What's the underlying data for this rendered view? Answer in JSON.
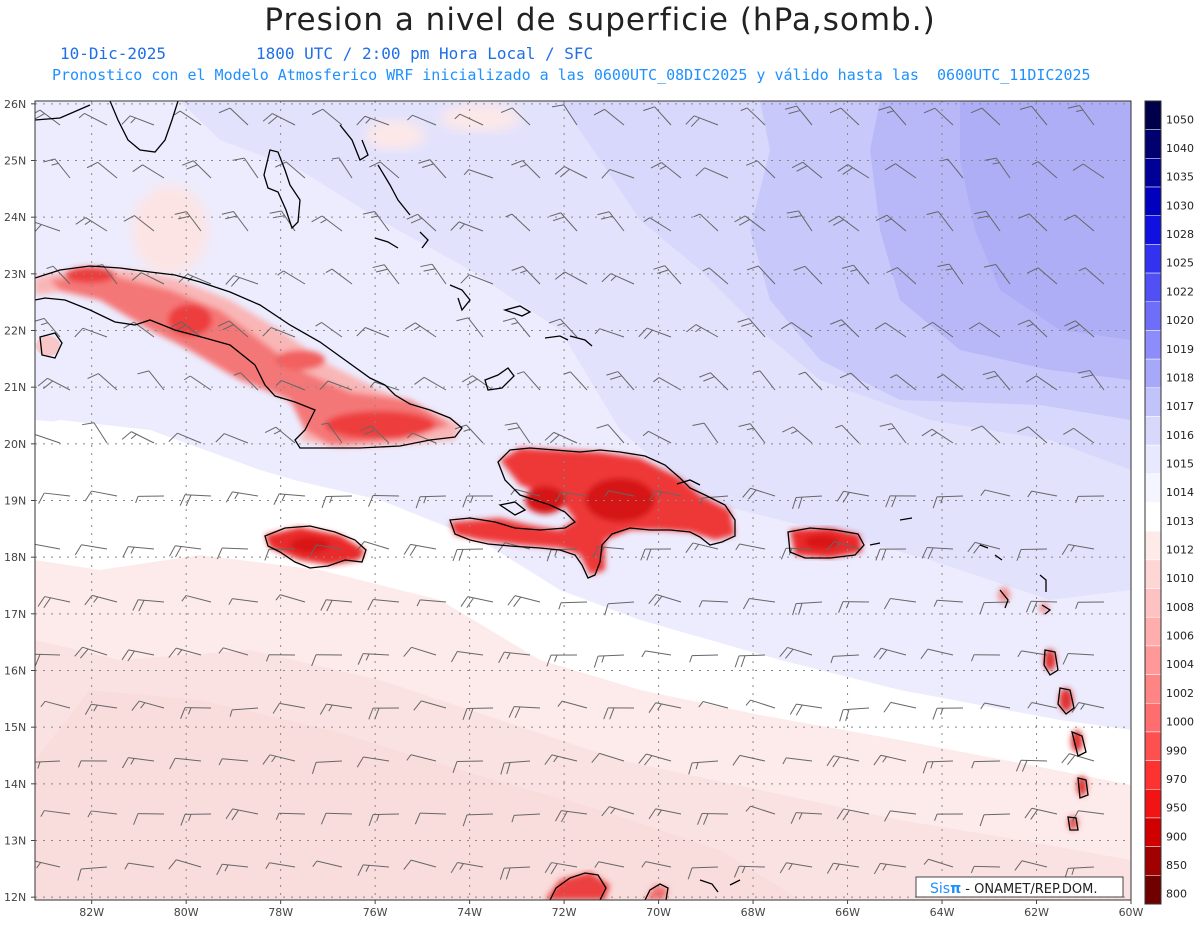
{
  "header": {
    "title": "Presion a nivel de superficie (hPa,somb.)",
    "date": "10-Dic-2025",
    "time": "1800 UTC / 2:00 pm Hora Local / SFC",
    "model_note": "Pronostico con el Modelo Atmosferico WRF inicializado a las 0600UTC_08DIC2025 y válido hasta las  0600UTC_11DIC2025"
  },
  "axes": {
    "lat_labels": [
      "26N",
      "25N",
      "24N",
      "23N",
      "22N",
      "21N",
      "20N",
      "19N",
      "18N",
      "17N",
      "16N",
      "15N",
      "14N",
      "13N",
      "12N"
    ],
    "lon_labels": [
      "82W",
      "80W",
      "78W",
      "76W",
      "74W",
      "72W",
      "70W",
      "68W",
      "66W",
      "64W",
      "62W",
      "60W"
    ]
  },
  "colorbar": {
    "labels": [
      "1050",
      "1040",
      "1035",
      "1030",
      "1028",
      "1025",
      "1022",
      "1020",
      "1019",
      "1018",
      "1017",
      "1016",
      "1015",
      "1014",
      "1013",
      "1012",
      "1010",
      "1008",
      "1006",
      "1004",
      "1002",
      "1000",
      "990",
      "970",
      "950",
      "900",
      "850",
      "800"
    ],
    "colors": [
      "#00004a",
      "#00006e",
      "#000096",
      "#0000be",
      "#1010e0",
      "#3232f0",
      "#5050f5",
      "#6e6ef8",
      "#8c8cfa",
      "#a8a8fb",
      "#c3c3fc",
      "#d8d8fd",
      "#e8e8fe",
      "#f5f5ff",
      "#ffffff",
      "#ffeaea",
      "#ffd6d6",
      "#ffc2c2",
      "#ffadad",
      "#ff9898",
      "#ff8484",
      "#ff6e6e",
      "#ff5050",
      "#ff3232",
      "#f01414",
      "#d00000",
      "#a00000",
      "#700000"
    ]
  },
  "credit": {
    "sis": "Sis",
    "pi": "π",
    "rest": " - ONAMET/REP.DOM."
  }
}
